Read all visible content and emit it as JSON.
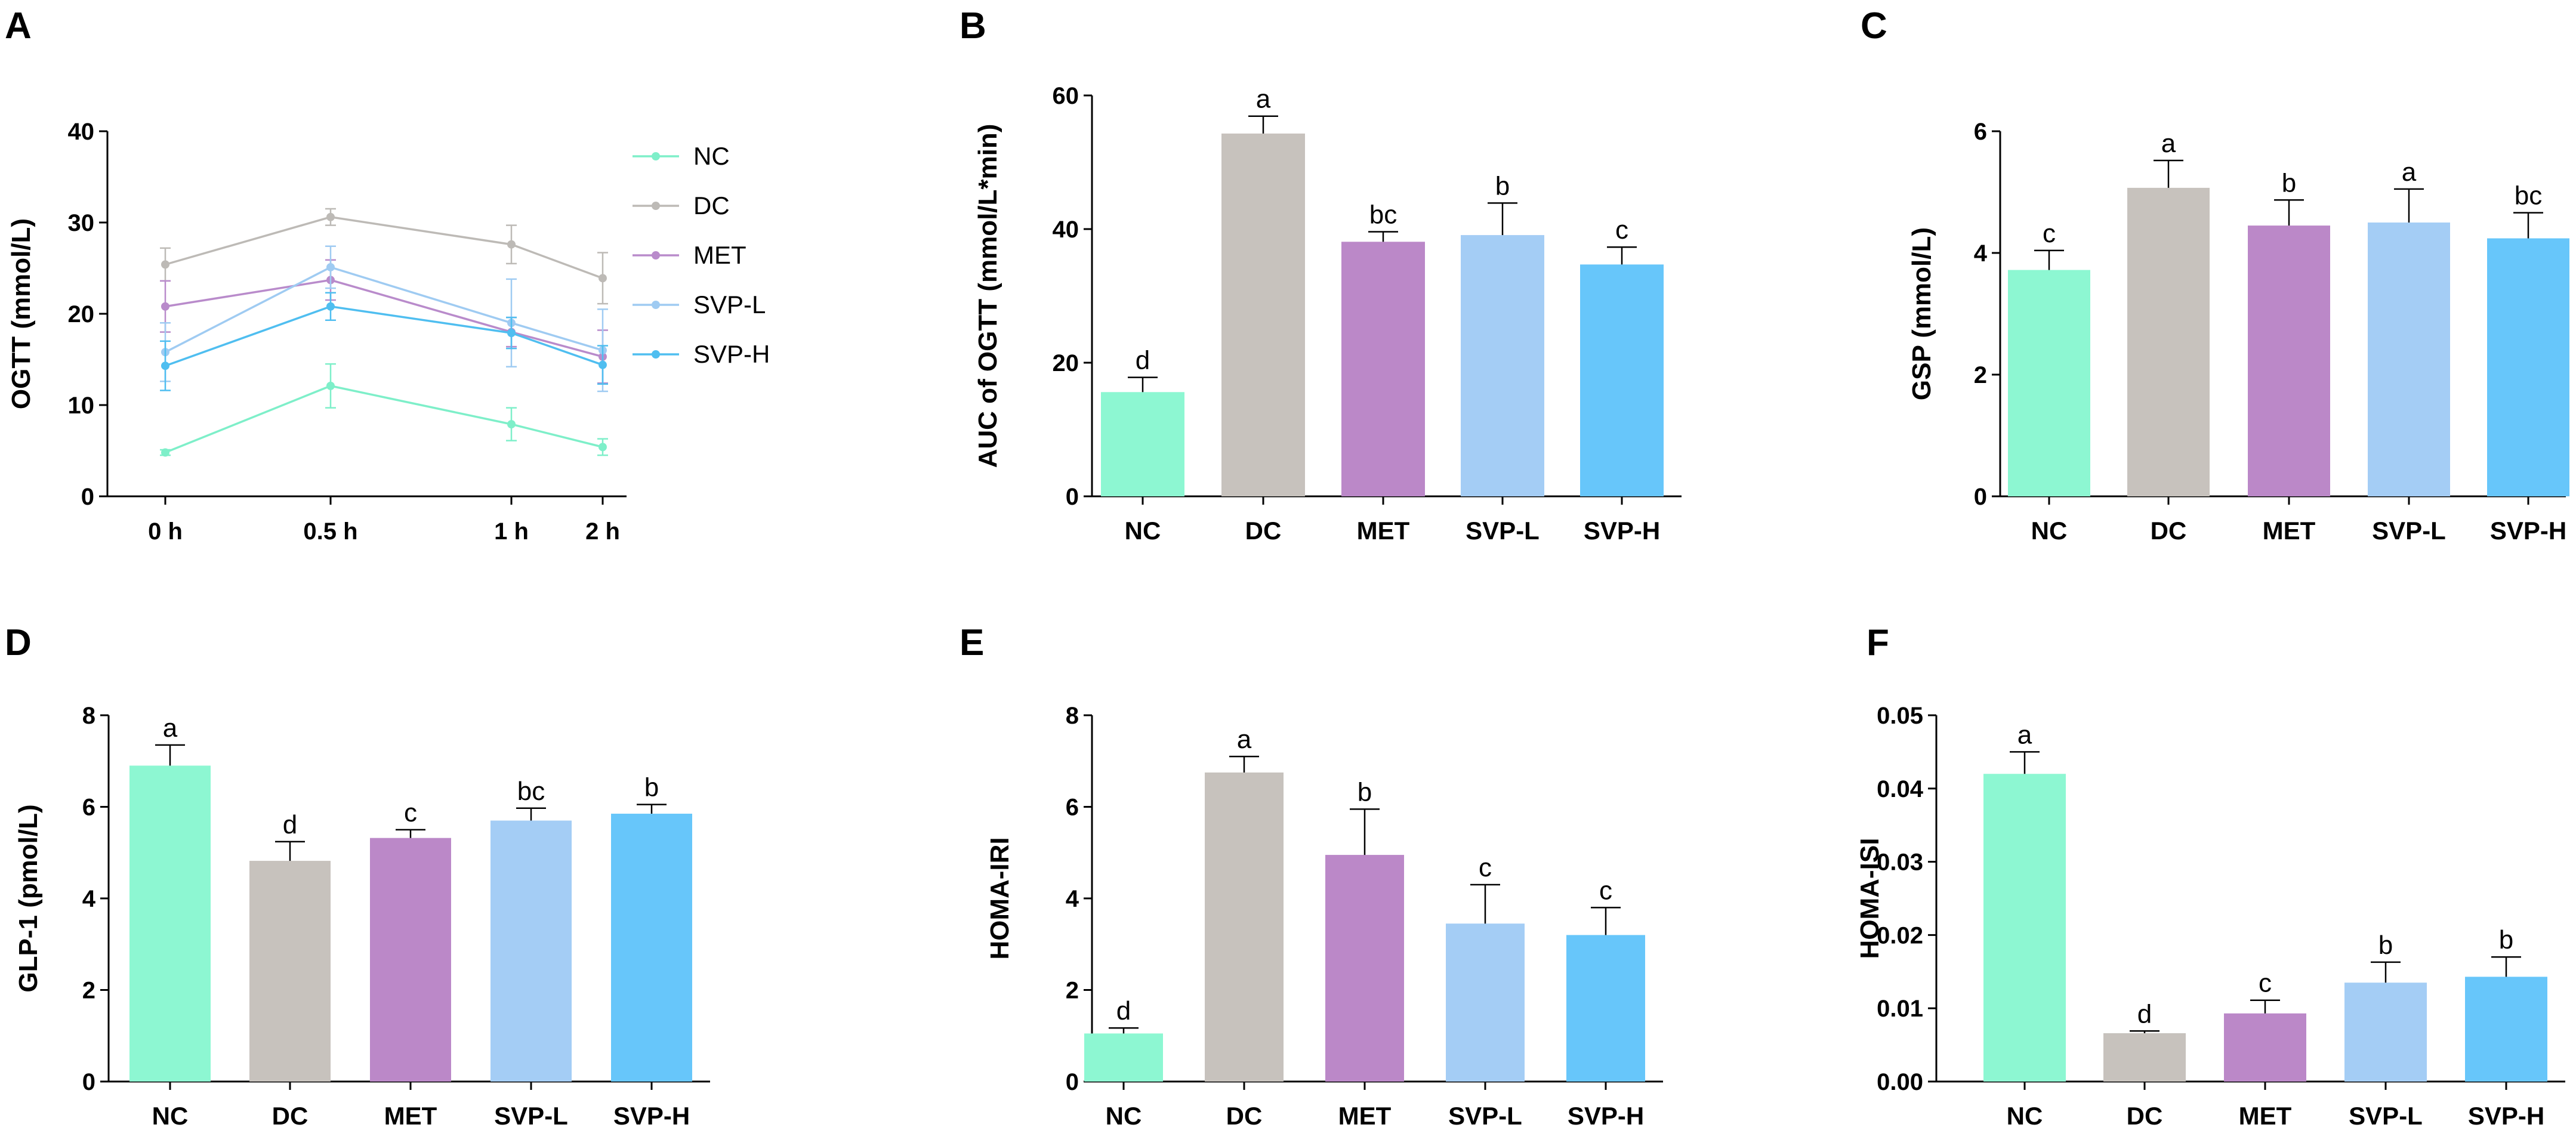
{
  "chart_data": [
    {
      "panel": "A",
      "type": "line",
      "ylabel": "OGTT (mmol/L)",
      "xlabel": "",
      "categories": [
        "0 h",
        "0.5 h",
        "1 h",
        "2 h"
      ],
      "ylim": [
        0,
        40
      ],
      "yticks": [
        0,
        10,
        20,
        30,
        40
      ],
      "series": [
        {
          "name": "NC",
          "color": "#7EEFC9",
          "values": [
            4.8,
            12.1,
            7.9,
            5.4
          ],
          "errors": [
            0.3,
            2.4,
            1.8,
            0.9
          ]
        },
        {
          "name": "DC",
          "color": "#BDBAB6",
          "values": [
            25.4,
            30.6,
            27.6,
            23.9
          ],
          "errors": [
            1.8,
            0.9,
            2.1,
            2.8
          ]
        },
        {
          "name": "MET",
          "color": "#B98BCB",
          "values": [
            20.8,
            23.7,
            18.0,
            15.3
          ],
          "errors": [
            2.8,
            2.2,
            1.6,
            2.9
          ]
        },
        {
          "name": "SVP-L",
          "color": "#9FCBF2",
          "values": [
            15.8,
            25.1,
            19.0,
            16.0
          ],
          "errors": [
            3.2,
            2.3,
            4.8,
            4.5
          ]
        },
        {
          "name": "SVP-H",
          "color": "#4FBEF0",
          "values": [
            14.3,
            20.8,
            17.9,
            14.4
          ],
          "errors": [
            2.7,
            1.5,
            1.7,
            2.1
          ]
        }
      ]
    },
    {
      "panel": "B",
      "type": "bar",
      "ylabel": "AUC of OGTT (mmol/L*min)",
      "categories": [
        "NC",
        "DC",
        "MET",
        "SVP-L",
        "SVP-H"
      ],
      "colors": [
        "#8DF7D2",
        "#C7C2BD",
        "#BB88C8",
        "#A4CDF5",
        "#67C6FA"
      ],
      "values": [
        15.6,
        54.3,
        38.1,
        39.1,
        34.7
      ],
      "errors": [
        2.2,
        2.6,
        1.5,
        4.8,
        2.6
      ],
      "letters": [
        "d",
        "a",
        "bc",
        "b",
        "c"
      ],
      "ylim": [
        0,
        60
      ],
      "yticks": [
        0,
        20,
        40,
        60
      ]
    },
    {
      "panel": "C",
      "type": "bar",
      "ylabel": "GSP (mmol/L)",
      "categories": [
        "NC",
        "DC",
        "MET",
        "SVP-L",
        "SVP-H"
      ],
      "colors": [
        "#8DF7D2",
        "#C7C2BD",
        "#BB88C8",
        "#A4CDF5",
        "#67C6FA"
      ],
      "values": [
        3.72,
        5.07,
        4.45,
        4.5,
        4.24
      ],
      "errors": [
        0.32,
        0.45,
        0.42,
        0.55,
        0.42
      ],
      "letters": [
        "c",
        "a",
        "b",
        "a",
        "bc"
      ],
      "ylim": [
        0,
        6
      ],
      "yticks": [
        0,
        2,
        4,
        6
      ]
    },
    {
      "panel": "D",
      "type": "bar",
      "ylabel": "GLP-1 (pmol/L)",
      "categories": [
        "NC",
        "DC",
        "MET",
        "SVP-L",
        "SVP-H"
      ],
      "colors": [
        "#8DF7D2",
        "#C7C2BD",
        "#BB88C8",
        "#A4CDF5",
        "#67C6FA"
      ],
      "values": [
        6.9,
        4.82,
        5.32,
        5.7,
        5.85
      ],
      "errors": [
        0.45,
        0.42,
        0.18,
        0.27,
        0.2
      ],
      "letters": [
        "a",
        "d",
        "c",
        "bc",
        "b"
      ],
      "ylim": [
        0,
        8
      ],
      "yticks": [
        0,
        2,
        4,
        6,
        8
      ]
    },
    {
      "panel": "E",
      "type": "bar",
      "ylabel": "HOMA-IRI",
      "categories": [
        "NC",
        "DC",
        "MET",
        "SVP-L",
        "SVP-H"
      ],
      "colors": [
        "#8DF7D2",
        "#C7C2BD",
        "#BB88C8",
        "#A4CDF5",
        "#67C6FA"
      ],
      "values": [
        1.05,
        6.75,
        4.95,
        3.45,
        3.2
      ],
      "errors": [
        0.12,
        0.35,
        1.0,
        0.85,
        0.6
      ],
      "letters": [
        "d",
        "a",
        "b",
        "c",
        "c"
      ],
      "ylim": [
        0,
        8
      ],
      "yticks": [
        0,
        2,
        4,
        6,
        8
      ]
    },
    {
      "panel": "F",
      "type": "bar",
      "ylabel": "HOMA-ISI",
      "categories": [
        "NC",
        "DC",
        "MET",
        "SVP-L",
        "SVP-H"
      ],
      "colors": [
        "#8DF7D2",
        "#C7C2BD",
        "#BB88C8",
        "#A4CDF5",
        "#67C6FA"
      ],
      "values": [
        0.042,
        0.0066,
        0.0093,
        0.0135,
        0.0143
      ],
      "errors": [
        0.003,
        0.0003,
        0.0018,
        0.0028,
        0.0027
      ],
      "letters": [
        "a",
        "d",
        "c",
        "b",
        "b"
      ],
      "ylim": [
        0,
        0.05
      ],
      "yticks": [
        0,
        0.01,
        0.02,
        0.03,
        0.04,
        0.05
      ],
      "ytick_labels": [
        "0.00",
        "0.01",
        "0.02",
        "0.03",
        "0.04",
        "0.05"
      ]
    }
  ]
}
